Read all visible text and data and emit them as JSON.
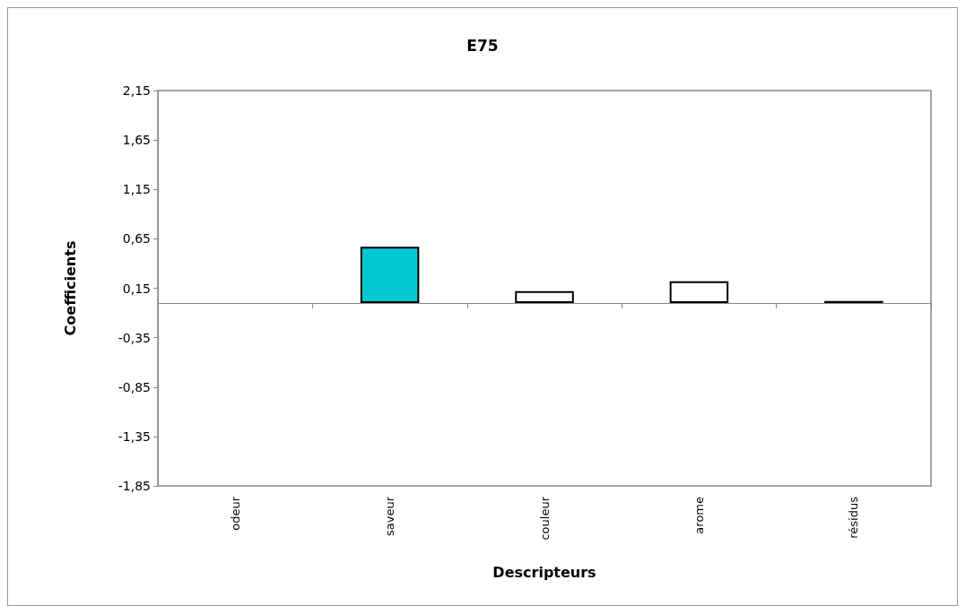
{
  "chart_data": {
    "type": "bar",
    "title": "E75",
    "xlabel": "Descripteurs",
    "ylabel": "Coefficients",
    "categories": [
      "odeur",
      "saveur",
      "couleur",
      "arome",
      "résidus"
    ],
    "values": [
      0,
      0.57,
      0.12,
      0.22,
      0.02
    ],
    "colors": [
      "#ffffff",
      "#00c8d0",
      "#ffffff",
      "#ffffff",
      "#ffffff"
    ],
    "ylim": [
      -1.85,
      2.15
    ],
    "yticks": [
      {
        "value": -1.85,
        "label": "-1,85"
      },
      {
        "value": -1.35,
        "label": "-1,35"
      },
      {
        "value": -0.85,
        "label": "-0,85"
      },
      {
        "value": -0.35,
        "label": "-0,35"
      },
      {
        "value": 0.15,
        "label": "0,15"
      },
      {
        "value": 0.65,
        "label": "0,65"
      },
      {
        "value": 1.15,
        "label": "1,15"
      },
      {
        "value": 1.65,
        "label": "1,65"
      },
      {
        "value": 2.15,
        "label": "2,15"
      }
    ],
    "grid": false
  }
}
